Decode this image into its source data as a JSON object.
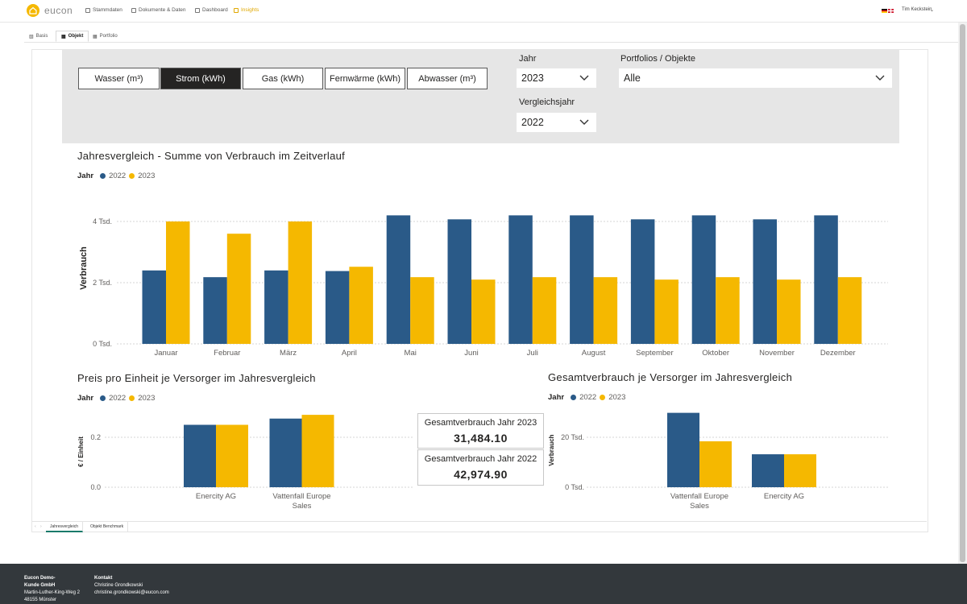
{
  "nav": {
    "logo_text": "eucon",
    "items": [
      {
        "label": "Stammdaten",
        "icon": "people-icon",
        "active": false
      },
      {
        "label": "Dokumente & Daten",
        "icon": "document-icon",
        "active": false
      },
      {
        "label": "Dashboard",
        "icon": "dashboard-icon",
        "active": false
      },
      {
        "label": "Insights",
        "icon": "chart-icon",
        "active": true
      }
    ],
    "user_name": "Tim Keckstein"
  },
  "subtabs": [
    {
      "label": "Basis",
      "icon": "bar-chart-icon"
    },
    {
      "label": "Objekt",
      "icon": "building-icon"
    },
    {
      "label": "Portfolio",
      "icon": "portfolio-icon"
    }
  ],
  "media_tabs": [
    "Wasser (m³)",
    "Strom (kWh)",
    "Gas (kWh)",
    "Fernwärme (kWh)",
    "Abwasser (m³)"
  ],
  "media_active": "Strom (kWh)",
  "filters": {
    "jahr_label": "Jahr",
    "jahr_value": "2023",
    "portfolio_label": "Portfolios / Objekte",
    "portfolio_value": "Alle",
    "vergleich_label": "Vergleichsjahr",
    "vergleich_value": "2022"
  },
  "colors": {
    "y2022": "#2a5a88",
    "y2023": "#f5b800"
  },
  "legend": {
    "title": "Jahr",
    "a": "2022",
    "b": "2023"
  },
  "main_chart": {
    "title": "Jahresvergleich - Summe von Verbrauch im Zeitverlauf",
    "ylabel": "Verbrauch",
    "ticks": [
      "4 Tsd.",
      "2 Tsd.",
      "0 Tsd."
    ]
  },
  "price_chart": {
    "title": "Preis pro Einheit je Versorger im Jahresvergleich",
    "ylabel": "€ / Einheit",
    "ticks": [
      "0.2",
      "0.0"
    ]
  },
  "total_chart": {
    "title": "Gesamtverbrauch je Versorger im Jahresvergleich",
    "ylabel": "Verbrauch",
    "ticks": [
      "20 Tsd.",
      "0 Tsd."
    ]
  },
  "cards": [
    {
      "label": "Gesamtverbrauch Jahr 2023",
      "value": "31,484.10"
    },
    {
      "label": "Gesamtverbrauch Jahr 2022",
      "value": "42,974.90"
    }
  ],
  "page_tabs": [
    "Jahresvergleich",
    "Objekt Benchmark"
  ],
  "footer": {
    "company": [
      "Eucon Demo-",
      "Kunde GmbH",
      "Martin-Luther-King-Weg 2",
      "48155 Münster"
    ],
    "contact_title": "Kontakt",
    "contact": [
      "Christine Grondkowski",
      "christine.grondkowski@eucon.com"
    ]
  },
  "chart_data": [
    {
      "type": "bar",
      "title": "Jahresvergleich - Summe von Verbrauch im Zeitverlauf",
      "xlabel": "",
      "ylabel": "Verbrauch",
      "ylim": [
        0,
        4500
      ],
      "categories": [
        "Januar",
        "Februar",
        "März",
        "April",
        "Mai",
        "Juni",
        "Juli",
        "August",
        "September",
        "Oktober",
        "November",
        "Dezember"
      ],
      "series": [
        {
          "name": "2022",
          "values": [
            2400,
            2180,
            2400,
            2380,
            4200,
            4070,
            4200,
            4200,
            4070,
            4200,
            4070,
            4200
          ]
        },
        {
          "name": "2023",
          "values": [
            4000,
            3600,
            4000,
            2520,
            2180,
            2100,
            2180,
            2180,
            2100,
            2180,
            2100,
            2180
          ]
        }
      ],
      "grid": true,
      "legend": "top-left"
    },
    {
      "type": "bar",
      "title": "Preis pro Einheit je Versorger im Jahresvergleich",
      "xlabel": "",
      "ylabel": "€ / Einheit",
      "ylim": [
        0,
        0.3
      ],
      "categories": [
        "Enercity AG",
        "Vattenfall Europe Sales"
      ],
      "series": [
        {
          "name": "2022",
          "values": [
            0.25,
            0.275
          ]
        },
        {
          "name": "2023",
          "values": [
            0.25,
            0.29
          ]
        }
      ],
      "grid": true,
      "legend": "top-left"
    },
    {
      "type": "bar",
      "title": "Gesamtverbrauch je Versorger im Jahresvergleich",
      "xlabel": "",
      "ylabel": "Verbrauch",
      "ylim": [
        0,
        30000
      ],
      "categories": [
        "Vattenfall Europe Sales",
        "Enercity AG"
      ],
      "series": [
        {
          "name": "2022",
          "values": [
            29800,
            13200
          ]
        },
        {
          "name": "2023",
          "values": [
            18400,
            13200
          ]
        }
      ],
      "grid": true,
      "legend": "top-left"
    }
  ]
}
